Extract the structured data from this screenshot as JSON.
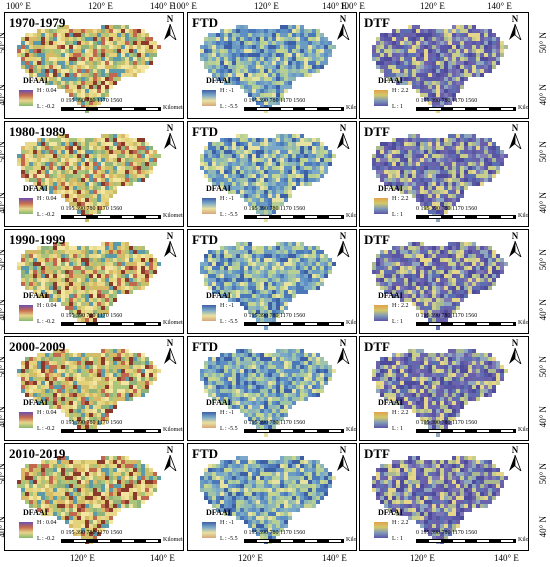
{
  "top_axis": [
    "100° E",
    "120° E",
    "140° E",
    "100° E",
    "120° E",
    "140° E",
    "100° E",
    "120° E",
    "140° E"
  ],
  "bottom_axis": [
    "120° E",
    "140° E",
    "120° E",
    "140° E",
    "120° E",
    "140° E"
  ],
  "left_axis": [
    "50° N",
    "40° N"
  ],
  "right_axis": [
    "50° N",
    "40° N"
  ],
  "north_label": "N",
  "scale_numbers": "0  195 390       780       1170      1560",
  "scale_unit": "Kilometers",
  "columns": [
    {
      "id": "DFAAI",
      "title_first_row": "1970-1979",
      "legend_title": "DFAAI",
      "high": "H : 0.04",
      "low": "L : -0.2",
      "colors": [
        "#f2e6a2",
        "#e3d27a",
        "#c9c069",
        "#8fb37a",
        "#5b9aa8",
        "#c1674e",
        "#8a3a2a",
        "#e9d98c",
        "#a9c47d",
        "#d9b965"
      ]
    },
    {
      "id": "FTD",
      "title_first_row": "FTD",
      "legend_title": "DFAAI",
      "high": "H : -1",
      "low": "L : -5.5",
      "colors": [
        "#4a78b8",
        "#5e8fc4",
        "#7aa8c8",
        "#9fc4a8",
        "#c7d68e",
        "#e8e2a0",
        "#3d5fa6",
        "#6c9bc2",
        "#b6cf94",
        "#8fb7b5"
      ]
    },
    {
      "id": "DTF",
      "title_first_row": "DTF",
      "legend_title": "DFAAI",
      "high": "H : 2.2",
      "low": "L : 1",
      "colors": [
        "#5a56a6",
        "#6864ad",
        "#4f4b9c",
        "#7d78b5",
        "#8fa7bd",
        "#c9cf8a",
        "#e6d68a",
        "#5c6fb0",
        "#aab98f",
        "#6a5ea8"
      ]
    }
  ],
  "rows": [
    {
      "period": "1970-1979"
    },
    {
      "period": "1980-1989"
    },
    {
      "period": "1990-1999"
    },
    {
      "period": "2000-2009"
    },
    {
      "period": "2010-2019"
    }
  ],
  "panel_titles": {
    "col2": "FTD",
    "col3": "DTF"
  }
}
